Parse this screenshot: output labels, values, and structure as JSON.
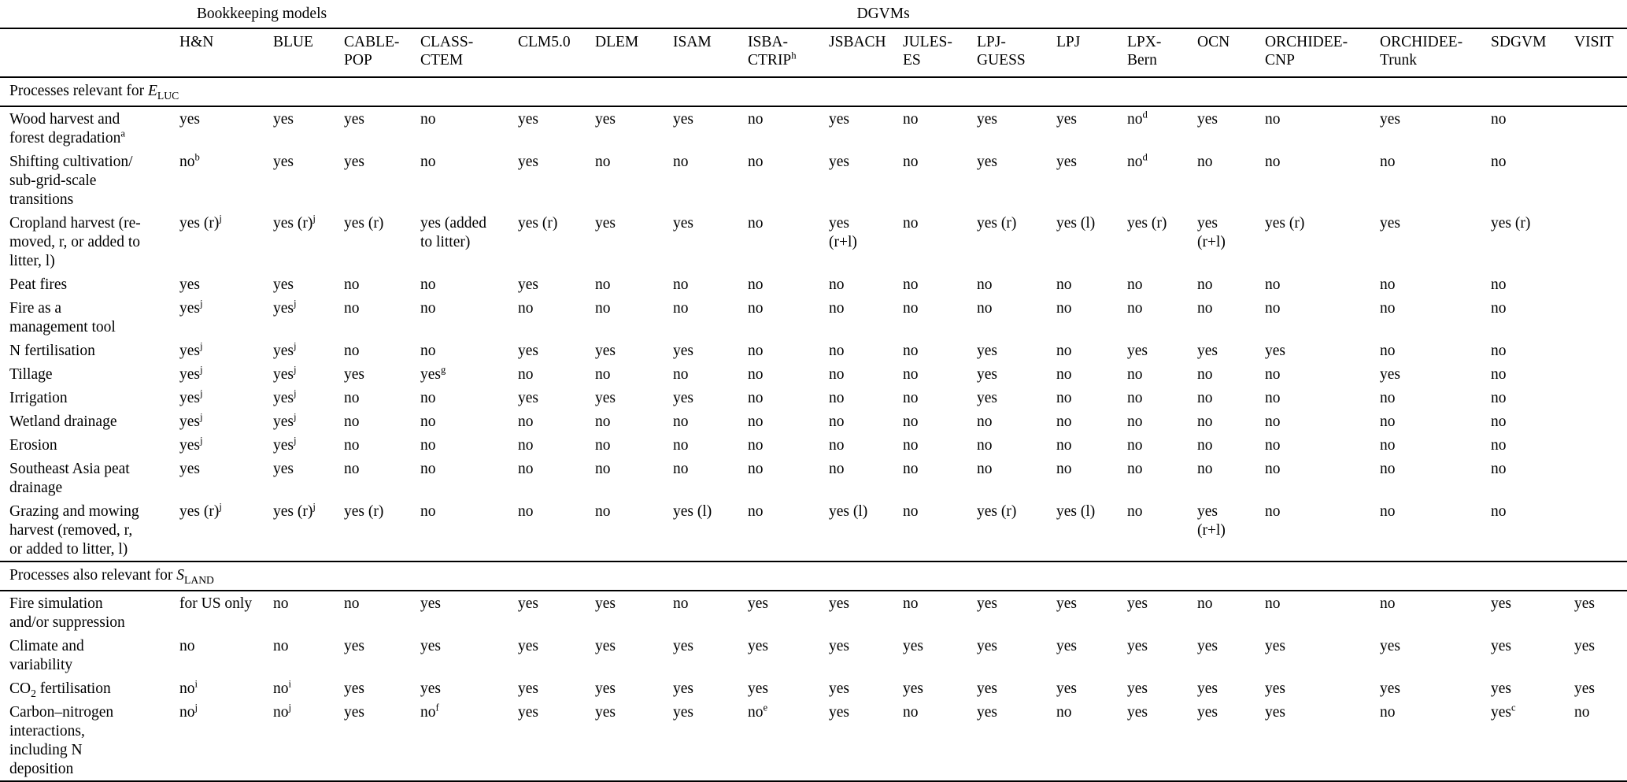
{
  "colors": {
    "background": "#ffffff",
    "text": "#000000",
    "rule": "#000000"
  },
  "table": {
    "group_header": {
      "bookkeeping": {
        "label": "Bookkeeping models",
        "span": 2
      },
      "dgvms": {
        "label": "DGVMs",
        "span": 16
      }
    },
    "columns": [
      "H&N",
      "BLUE",
      "CABLE-\nPOP",
      "CLASS-\nCTEM",
      "CLM5.0",
      "DLEM",
      "ISAM",
      "ISBA-\nCTRIP^{h}",
      "JSBACH",
      "JULES-\nES",
      "LPJ-\nGUESS",
      "LPJ",
      "LPX-\nBern",
      "OCN",
      "ORCHIDEE-\nCNP",
      "ORCHIDEE-\nTrunk",
      "SDGVM",
      "VISIT"
    ],
    "sections": [
      {
        "title": "Processes relevant for *E*_{LUC}",
        "rows": [
          {
            "label": "Wood harvest and\nforest degradation^{a}",
            "values": [
              "yes",
              "yes",
              "yes",
              "no",
              "yes",
              "yes",
              "yes",
              "no",
              "yes",
              "no",
              "yes",
              "yes",
              "no^{d}",
              "yes",
              "no",
              "yes",
              "no",
              ""
            ]
          },
          {
            "label": "Shifting cultivation/\nsub-grid-scale\ntransitions",
            "values": [
              "no^{b}",
              "yes",
              "yes",
              "no",
              "yes",
              "no",
              "no",
              "no",
              "yes",
              "no",
              "yes",
              "yes",
              "no^{d}",
              "no",
              "no",
              "no",
              "no",
              ""
            ]
          },
          {
            "label": "Cropland harvest (re-\nmoved, r, or added to\nlitter, l)",
            "values": [
              "yes (r)^{j}",
              "yes (r)^{j}",
              "yes (r)",
              "yes (added\nto litter)",
              "yes (r)",
              "yes",
              "yes",
              "no",
              "yes\n(r+l)",
              "no",
              "yes (r)",
              "yes (l)",
              "yes (r)",
              "yes\n(r+l)",
              "yes (r)",
              "yes",
              "yes (r)",
              ""
            ]
          },
          {
            "label": "Peat fires",
            "values": [
              "yes",
              "yes",
              "no",
              "no",
              "yes",
              "no",
              "no",
              "no",
              "no",
              "no",
              "no",
              "no",
              "no",
              "no",
              "no",
              "no",
              "no",
              ""
            ]
          },
          {
            "label": "Fire as a\nmanagement tool",
            "values": [
              "yes^{j}",
              "yes^{j}",
              "no",
              "no",
              "no",
              "no",
              "no",
              "no",
              "no",
              "no",
              "no",
              "no",
              "no",
              "no",
              "no",
              "no",
              "no",
              ""
            ]
          },
          {
            "label": "N fertilisation",
            "values": [
              "yes^{j}",
              "yes^{j}",
              "no",
              "no",
              "yes",
              "yes",
              "yes",
              "no",
              "no",
              "no",
              "yes",
              "no",
              "yes",
              "yes",
              "yes",
              "no",
              "no",
              ""
            ]
          },
          {
            "label": "Tillage",
            "values": [
              "yes^{j}",
              "yes^{j}",
              "yes",
              "yes^{g}",
              "no",
              "no",
              "no",
              "no",
              "no",
              "no",
              "yes",
              "no",
              "no",
              "no",
              "no",
              "yes",
              "no",
              ""
            ]
          },
          {
            "label": "Irrigation",
            "values": [
              "yes^{j}",
              "yes^{j}",
              "no",
              "no",
              "yes",
              "yes",
              "yes",
              "no",
              "no",
              "no",
              "yes",
              "no",
              "no",
              "no",
              "no",
              "no",
              "no",
              ""
            ]
          },
          {
            "label": "Wetland drainage",
            "values": [
              "yes^{j}",
              "yes^{j}",
              "no",
              "no",
              "no",
              "no",
              "no",
              "no",
              "no",
              "no",
              "no",
              "no",
              "no",
              "no",
              "no",
              "no",
              "no",
              ""
            ]
          },
          {
            "label": "Erosion",
            "values": [
              "yes^{j}",
              "yes^{j}",
              "no",
              "no",
              "no",
              "no",
              "no",
              "no",
              "no",
              "no",
              "no",
              "no",
              "no",
              "no",
              "no",
              "no",
              "no",
              ""
            ]
          },
          {
            "label": "Southeast Asia peat\ndrainage",
            "values": [
              "yes",
              "yes",
              "no",
              "no",
              "no",
              "no",
              "no",
              "no",
              "no",
              "no",
              "no",
              "no",
              "no",
              "no",
              "no",
              "no",
              "no",
              ""
            ]
          },
          {
            "label": "Grazing and mowing\nharvest (removed, r,\nor added to litter, l)",
            "values": [
              "yes (r)^{j}",
              "yes (r)^{j}",
              "yes (r)",
              "no",
              "no",
              "no",
              "yes (l)",
              "no",
              "yes (l)",
              "no",
              "yes (r)",
              "yes (l)",
              "no",
              "yes\n(r+l)",
              "no",
              "no",
              "no",
              ""
            ]
          }
        ]
      },
      {
        "title": "Processes also relevant for *S*_{LAND}",
        "rows": [
          {
            "label": "Fire simulation\nand/or suppression",
            "values": [
              "for US only",
              "no",
              "no",
              "yes",
              "yes",
              "yes",
              "no",
              "yes",
              "yes",
              "no",
              "yes",
              "yes",
              "yes",
              "no",
              "no",
              "no",
              "yes",
              "yes"
            ]
          },
          {
            "label": "Climate and\nvariability",
            "values": [
              "no",
              "no",
              "yes",
              "yes",
              "yes",
              "yes",
              "yes",
              "yes",
              "yes",
              "yes",
              "yes",
              "yes",
              "yes",
              "yes",
              "yes",
              "yes",
              "yes",
              "yes"
            ]
          },
          {
            "label": "CO_{2} fertilisation",
            "values": [
              "no^{i}",
              "no^{i}",
              "yes",
              "yes",
              "yes",
              "yes",
              "yes",
              "yes",
              "yes",
              "yes",
              "yes",
              "yes",
              "yes",
              "yes",
              "yes",
              "yes",
              "yes",
              "yes"
            ]
          },
          {
            "label": "Carbon–nitrogen\ninteractions,\nincluding N\ndeposition",
            "values": [
              "no^{j}",
              "no^{j}",
              "yes",
              "no^{f}",
              "yes",
              "yes",
              "yes",
              "no^{e}",
              "yes",
              "no",
              "yes",
              "no",
              "yes",
              "yes",
              "yes",
              "no",
              "yes^{c}",
              "no"
            ]
          }
        ]
      }
    ]
  }
}
